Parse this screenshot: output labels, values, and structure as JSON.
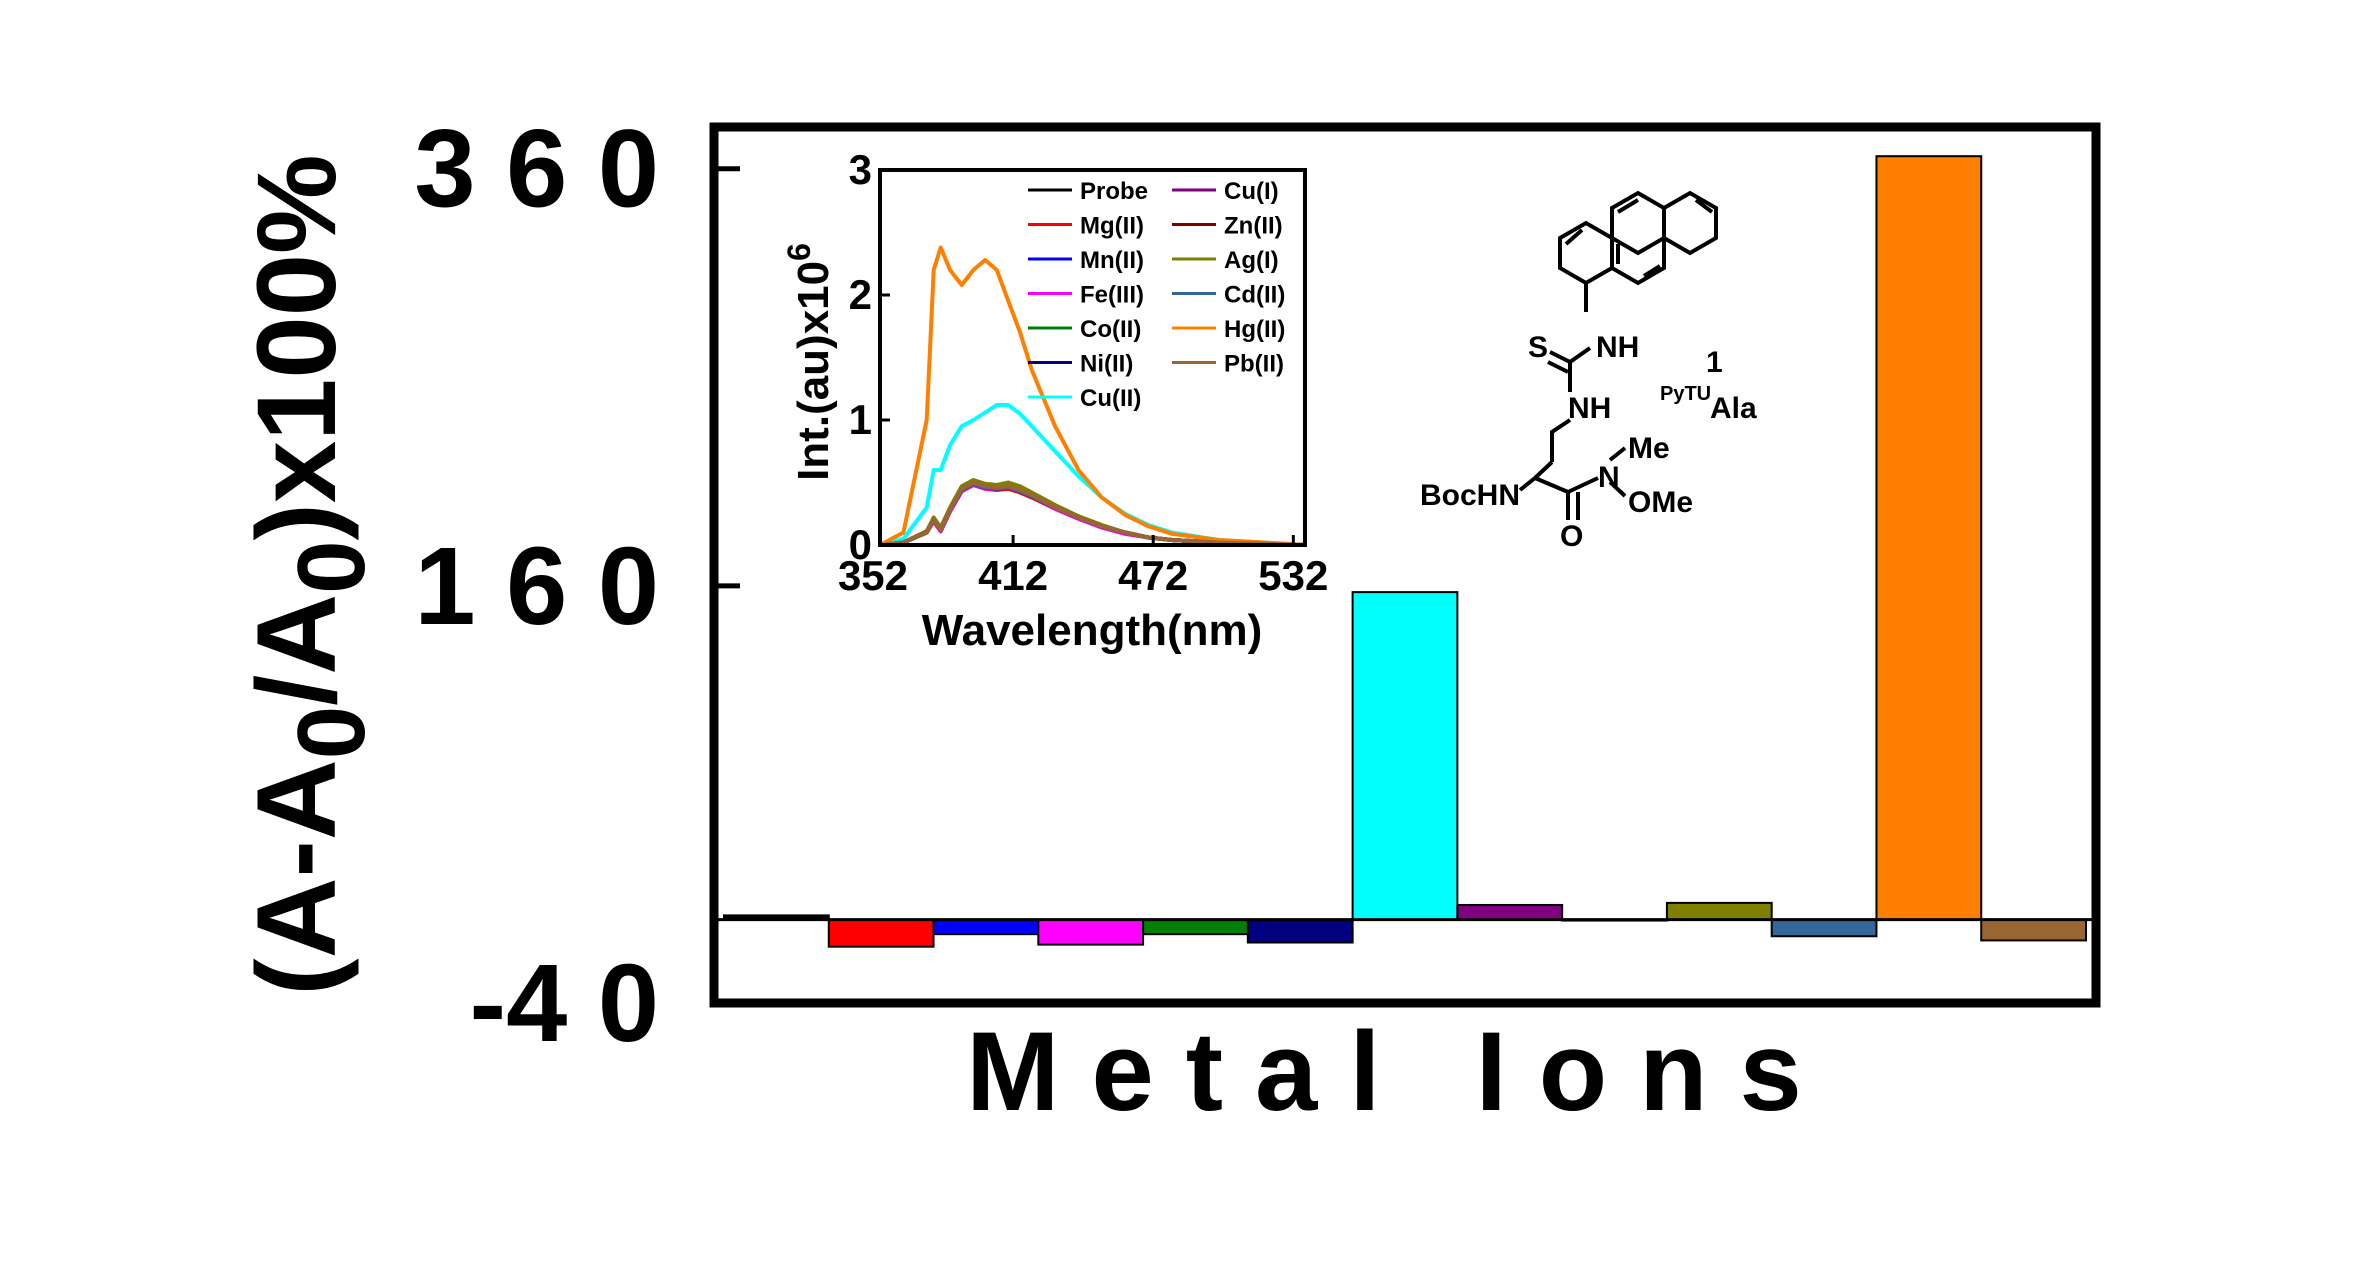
{
  "chart_data": [
    {
      "type": "bar",
      "title": "",
      "xlabel": "Metal Ions",
      "ylabel_parts": {
        "pre": "(A-A",
        "sub1": "0",
        "mid": "/A",
        "sub2": "0",
        "post": ")x100%"
      },
      "ylim": [
        -40,
        380
      ],
      "yticks": [
        -40,
        160,
        360
      ],
      "ytick_labels": [
        "-4 0",
        "1 6 0",
        "3 6 0"
      ],
      "categories": [
        "Probe",
        "Mg(II)",
        "Mn(II)",
        "Fe(III)",
        "Co(II)",
        "Ni(II)",
        "Cu(II)",
        "Cu(I)",
        "Zn(II)",
        "Ag(I)",
        "Cd(II)",
        "Hg(II)",
        "Pb(II)"
      ],
      "values": [
        2,
        -13,
        -7,
        -12,
        -7,
        -11,
        157,
        7,
        0,
        8,
        -8,
        366,
        -10
      ],
      "colors": [
        "#000000",
        "#ff0000",
        "#0000ff",
        "#ff00ff",
        "#008000",
        "#000080",
        "#00ffff",
        "#800080",
        "#800000",
        "#808000",
        "#336699",
        "#ff8000",
        "#996633"
      ]
    },
    {
      "type": "line",
      "inset": true,
      "xlabel": "Wavelength(nm)",
      "ylabel": "Int.(au)x10",
      "ylabel_sup": "6",
      "xlim": [
        355,
        537
      ],
      "ylim": [
        0,
        3
      ],
      "xticks": [
        352,
        412,
        472,
        532
      ],
      "yticks": [
        0,
        1,
        2,
        3
      ],
      "legend_columns": [
        [
          "Probe",
          "Mg(II)",
          "Mn(II)",
          "Fe(III)",
          "Co(II)",
          "Ni(II)",
          "Cu(II)"
        ],
        [
          "Cu(I)",
          "Zn(II)",
          "Ag(I)",
          "Cd(II)",
          "Hg(II)",
          "Pb(II)"
        ]
      ],
      "x": [
        355,
        365,
        375,
        378,
        381,
        385,
        390,
        395,
        400,
        405,
        410,
        415,
        420,
        430,
        440,
        450,
        460,
        470,
        480,
        500,
        520,
        537
      ],
      "series": [
        {
          "name": "Probe",
          "color": "#000000",
          "values": [
            0,
            0.02,
            0.1,
            0.2,
            0.12,
            0.28,
            0.45,
            0.5,
            0.47,
            0.46,
            0.47,
            0.44,
            0.4,
            0.3,
            0.22,
            0.15,
            0.1,
            0.06,
            0.04,
            0.02,
            0.01,
            0
          ]
        },
        {
          "name": "Mg(II)",
          "color": "#ff0000",
          "values": [
            0,
            0.02,
            0.1,
            0.19,
            0.11,
            0.27,
            0.43,
            0.48,
            0.45,
            0.44,
            0.45,
            0.42,
            0.38,
            0.29,
            0.21,
            0.14,
            0.09,
            0.06,
            0.04,
            0.02,
            0.01,
            0
          ]
        },
        {
          "name": "Mn(II)",
          "color": "#0000ff",
          "values": [
            0,
            0.02,
            0.1,
            0.2,
            0.12,
            0.28,
            0.44,
            0.49,
            0.46,
            0.45,
            0.46,
            0.43,
            0.39,
            0.3,
            0.22,
            0.15,
            0.1,
            0.06,
            0.04,
            0.02,
            0.01,
            0
          ]
        },
        {
          "name": "Fe(III)",
          "color": "#ff00ff",
          "values": [
            0,
            0.02,
            0.1,
            0.19,
            0.11,
            0.27,
            0.43,
            0.48,
            0.45,
            0.45,
            0.46,
            0.43,
            0.39,
            0.29,
            0.21,
            0.14,
            0.09,
            0.06,
            0.04,
            0.02,
            0.01,
            0
          ]
        },
        {
          "name": "Co(II)",
          "color": "#008000",
          "values": [
            0,
            0.02,
            0.11,
            0.21,
            0.13,
            0.29,
            0.46,
            0.51,
            0.48,
            0.47,
            0.48,
            0.45,
            0.41,
            0.31,
            0.23,
            0.15,
            0.1,
            0.06,
            0.04,
            0.02,
            0.01,
            0
          ]
        },
        {
          "name": "Ni(II)",
          "color": "#000080",
          "values": [
            0,
            0.02,
            0.1,
            0.2,
            0.12,
            0.28,
            0.44,
            0.49,
            0.46,
            0.45,
            0.46,
            0.43,
            0.39,
            0.3,
            0.22,
            0.15,
            0.1,
            0.06,
            0.04,
            0.02,
            0.01,
            0
          ]
        },
        {
          "name": "Cu(II)",
          "color": "#00ffff",
          "values": [
            0,
            0.05,
            0.3,
            0.6,
            0.6,
            0.8,
            0.95,
            1.0,
            1.06,
            1.12,
            1.12,
            1.05,
            0.95,
            0.75,
            0.55,
            0.38,
            0.25,
            0.16,
            0.1,
            0.04,
            0.02,
            0
          ]
        },
        {
          "name": "Cu(I)",
          "color": "#800080",
          "values": [
            0,
            0.02,
            0.11,
            0.21,
            0.13,
            0.29,
            0.46,
            0.51,
            0.48,
            0.47,
            0.49,
            0.46,
            0.41,
            0.31,
            0.23,
            0.15,
            0.1,
            0.06,
            0.04,
            0.02,
            0.01,
            0
          ]
        },
        {
          "name": "Zn(II)",
          "color": "#800000",
          "values": [
            0,
            0.02,
            0.11,
            0.2,
            0.12,
            0.28,
            0.45,
            0.5,
            0.47,
            0.46,
            0.47,
            0.44,
            0.4,
            0.3,
            0.22,
            0.15,
            0.1,
            0.06,
            0.04,
            0.02,
            0.01,
            0
          ]
        },
        {
          "name": "Ag(I)",
          "color": "#808000",
          "values": [
            0,
            0.02,
            0.11,
            0.22,
            0.14,
            0.3,
            0.47,
            0.52,
            0.49,
            0.48,
            0.5,
            0.47,
            0.42,
            0.32,
            0.23,
            0.16,
            0.1,
            0.06,
            0.04,
            0.02,
            0.01,
            0
          ]
        },
        {
          "name": "Cd(II)",
          "color": "#336699",
          "values": [
            0,
            0.02,
            0.1,
            0.2,
            0.12,
            0.28,
            0.44,
            0.49,
            0.46,
            0.45,
            0.46,
            0.43,
            0.39,
            0.3,
            0.22,
            0.15,
            0.1,
            0.06,
            0.04,
            0.02,
            0.01,
            0
          ]
        },
        {
          "name": "Hg(II)",
          "color": "#ff8000",
          "values": [
            0,
            0.1,
            1.0,
            2.2,
            2.38,
            2.2,
            2.08,
            2.2,
            2.28,
            2.2,
            1.95,
            1.7,
            1.4,
            0.95,
            0.6,
            0.38,
            0.24,
            0.15,
            0.09,
            0.04,
            0.02,
            0
          ]
        },
        {
          "name": "Pb(II)",
          "color": "#996633",
          "values": [
            0,
            0.02,
            0.1,
            0.2,
            0.12,
            0.28,
            0.45,
            0.5,
            0.47,
            0.46,
            0.47,
            0.44,
            0.4,
            0.3,
            0.22,
            0.15,
            0.1,
            0.06,
            0.04,
            0.02,
            0.01,
            0
          ]
        }
      ]
    }
  ],
  "structure": {
    "labels": {
      "nh_top": "NH",
      "s": "S",
      "nh_mid": "NH",
      "number": "1",
      "sup_name": "PyTU",
      "name": "Ala",
      "me": "Me",
      "n": "N",
      "ome": "OMe",
      "bochn": "BocHN",
      "o": "O"
    }
  }
}
